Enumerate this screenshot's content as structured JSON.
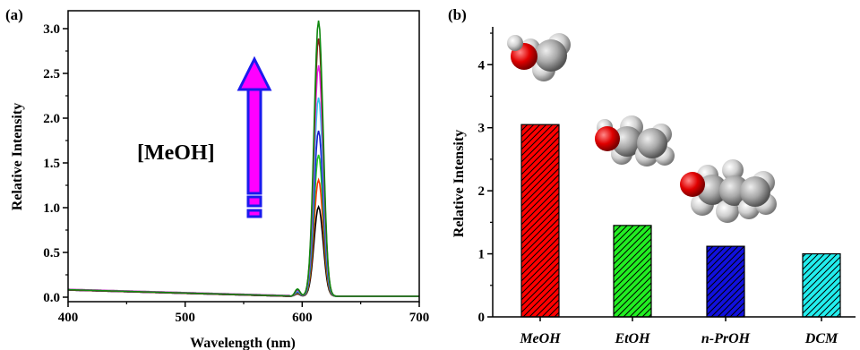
{
  "chart_data": [
    {
      "panel": "(a)",
      "type": "line",
      "xlabel": "Wavelength (nm)",
      "ylabel": "Relative Intensity",
      "xlim": [
        400,
        700
      ],
      "ylim": [
        -0.05,
        3.2
      ],
      "xticks": [
        400,
        500,
        600,
        700
      ],
      "yticks": [
        "0.0",
        "0.5",
        "1.0",
        "1.5",
        "2.0",
        "2.5",
        "3.0"
      ],
      "peak_wavelength": 614,
      "peak_width_nm": 5.5,
      "baseline_start": 0.08,
      "series": [
        {
          "color": "#000000",
          "peak": 1.0
        },
        {
          "color": "#ff3300",
          "peak": 1.3
        },
        {
          "color": "#22cc22",
          "peak": 1.58
        },
        {
          "color": "#1a1acc",
          "peak": 1.85
        },
        {
          "color": "#33ccee",
          "peak": 2.22
        },
        {
          "color": "#ee22ee",
          "peak": 2.58
        },
        {
          "color": "#8b1a1a",
          "peak": 2.88
        },
        {
          "color": "#118811",
          "peak": 3.08
        }
      ],
      "annotation": "[MeOH]",
      "arrow_colors": {
        "fill": "#ff00ff",
        "outline": "#1a1aee"
      },
      "grid": false,
      "legend": "none"
    },
    {
      "panel": "(b)",
      "type": "bar",
      "ylabel": "Relative Intensity",
      "ylim": [
        0,
        4.6
      ],
      "yticks": [
        "0",
        "1",
        "2",
        "3",
        "4"
      ],
      "categories": [
        "MeOH",
        "EtOH",
        "n-PrOH",
        "DCM"
      ],
      "values": [
        3.05,
        1.45,
        1.12,
        1.0
      ],
      "colors": [
        "#ff0000",
        "#22ee22",
        "#1111dd",
        "#22eeee"
      ],
      "pattern": "diagonal-hatch",
      "molecule_icons": [
        "methanol-model",
        "ethanol-model",
        "propanol-model"
      ],
      "grid": false,
      "legend": "none"
    }
  ]
}
